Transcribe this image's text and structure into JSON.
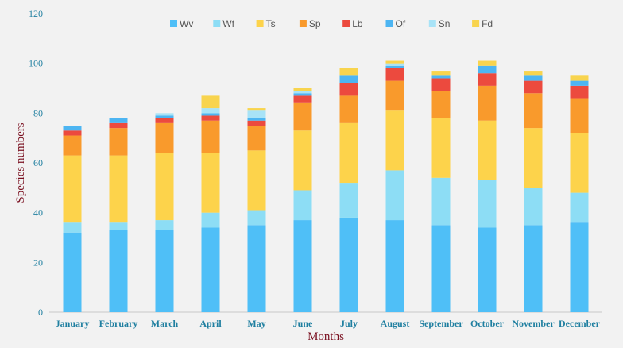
{
  "chart_data": {
    "type": "bar",
    "stacked": true,
    "title": "",
    "xlabel": "Months",
    "ylabel": "Species numbers",
    "ylim": [
      0,
      120
    ],
    "yticks": [
      0,
      20,
      40,
      60,
      80,
      100,
      120
    ],
    "legend_position": "top-center",
    "grid": false,
    "categories": [
      "January",
      "February",
      "March",
      "April",
      "May",
      "June",
      "July",
      "August",
      "September",
      "October",
      "November",
      "December"
    ],
    "series": [
      {
        "name": "Wv",
        "color": "#4FBFF7",
        "values": [
          32,
          33,
          33,
          34,
          35,
          37,
          38,
          37,
          35,
          34,
          35,
          36
        ]
      },
      {
        "name": "Wf",
        "color": "#8DDDF5",
        "values": [
          4,
          3,
          4,
          6,
          6,
          12,
          14,
          20,
          19,
          19,
          15,
          12
        ]
      },
      {
        "name": "Ts",
        "color": "#FDD34B",
        "values": [
          27,
          27,
          27,
          24,
          24,
          24,
          24,
          24,
          24,
          24,
          24,
          24
        ]
      },
      {
        "name": "Sp",
        "color": "#F99A2C",
        "values": [
          8,
          11,
          12,
          13,
          10,
          11,
          11,
          12,
          11,
          14,
          14,
          14
        ]
      },
      {
        "name": "Lb",
        "color": "#EC4A3E",
        "values": [
          2,
          2,
          2,
          2,
          2,
          3,
          5,
          5,
          5,
          5,
          5,
          5
        ]
      },
      {
        "name": "Of",
        "color": "#4DB5F2",
        "values": [
          2,
          2,
          1,
          1,
          1,
          1,
          3,
          1,
          1,
          3,
          2,
          2
        ]
      },
      {
        "name": "Sn",
        "color": "#A8E3F7",
        "values": [
          0,
          0,
          1,
          2,
          3,
          1,
          0,
          1,
          0,
          0,
          0,
          0
        ]
      },
      {
        "name": "Fd",
        "color": "#F8D44E",
        "values": [
          0,
          0,
          0,
          5,
          1,
          1,
          3,
          1,
          2,
          2,
          2,
          2
        ]
      }
    ]
  }
}
